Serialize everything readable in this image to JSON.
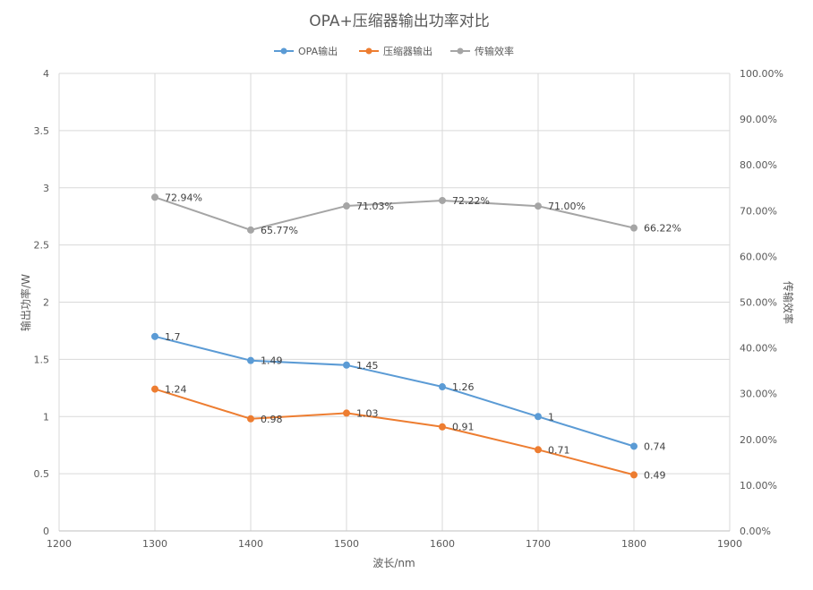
{
  "chart_data": {
    "type": "line",
    "title": "OPA+压缩器输出功率对比",
    "xlabel": "波长/nm",
    "ylabel": "输出功率/W",
    "y2label": "传输效率",
    "xlim": [
      1200,
      1900
    ],
    "xticks": [
      "1200",
      "1300",
      "1400",
      "1500",
      "1600",
      "1700",
      "1800",
      "1900"
    ],
    "ylim": [
      0,
      4
    ],
    "yticks": [
      "0",
      "0.5",
      "1",
      "1.5",
      "2",
      "2.5",
      "3",
      "3.5",
      "4"
    ],
    "y2lim": [
      0,
      100
    ],
    "y2ticks": [
      "0.00%",
      "10.00%",
      "20.00%",
      "30.00%",
      "40.00%",
      "50.00%",
      "60.00%",
      "70.00%",
      "80.00%",
      "90.00%",
      "100.00%"
    ],
    "grid": true,
    "legend_position": "top",
    "x": [
      1300,
      1400,
      1500,
      1600,
      1700,
      1800
    ],
    "series": [
      {
        "name": "OPA输出",
        "axis": "left",
        "color": "#5b9bd5",
        "values": [
          1.7,
          1.49,
          1.45,
          1.26,
          1,
          0.74
        ],
        "labels": [
          "1.7",
          "1.49",
          "1.45",
          "1.26",
          "1",
          "0.74"
        ]
      },
      {
        "name": "压缩器输出",
        "axis": "left",
        "color": "#ed7d31",
        "values": [
          1.24,
          0.98,
          1.03,
          0.91,
          0.71,
          0.49
        ],
        "labels": [
          "1.24",
          "0.98",
          "1.03",
          "0.91",
          "0.71",
          "0.49"
        ]
      },
      {
        "name": "传输效率",
        "axis": "right",
        "color": "#a5a5a5",
        "values": [
          72.94,
          65.77,
          71.03,
          72.22,
          71.0,
          66.22
        ],
        "labels": [
          "72.94%",
          "65.77%",
          "71.03%",
          "72.22%",
          "71.00%",
          "66.22%"
        ]
      }
    ]
  }
}
